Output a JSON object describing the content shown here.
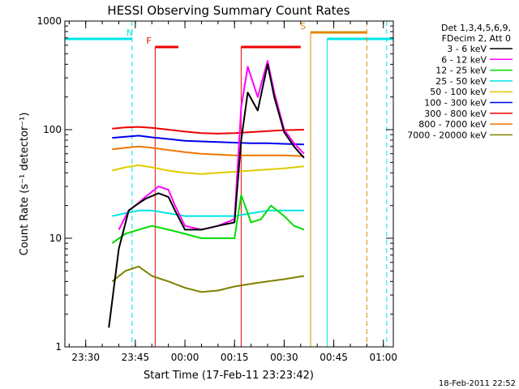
{
  "chart_data": {
    "type": "line",
    "title": "HESSI Observing Summary Count Rates",
    "xlabel": "Start Time (17-Feb-11 23:23:42)",
    "ylabel": "Count Rate (s⁻¹ detector⁻¹)",
    "y_scale": "log",
    "ylim": [
      1,
      1000
    ],
    "xlim": [
      "23:23:42",
      "01:03:00"
    ],
    "x_ticks": [
      "23:30",
      "23:45",
      "00:00",
      "00:15",
      "00:30",
      "00:45",
      "01:00"
    ],
    "y_ticks": [
      "1",
      "10",
      "100",
      "1000"
    ],
    "legend_header": [
      "Det 1,3,4,5,6,9,",
      "FDecim 2, Att 0"
    ],
    "timestamp": "18-Feb-2011 22:52",
    "flags": [
      {
        "label": "N",
        "color": "#00e5e5"
      },
      {
        "label": "F",
        "color": "#ee0000"
      },
      {
        "label": "S",
        "color": "#e08a00"
      }
    ],
    "flag_bars": [
      {
        "flag": "N",
        "segments": [
          [
            "23:23:42",
            "23:44:00"
          ],
          [
            "00:43:00",
            "01:03:00"
          ]
        ]
      },
      {
        "flag": "F",
        "segments": [
          [
            "23:51:00",
            "23:58:00"
          ],
          [
            "00:17:00",
            "00:35:00"
          ]
        ]
      },
      {
        "flag": "S",
        "segments": [
          [
            "00:38:00",
            "00:55:00"
          ]
        ]
      }
    ],
    "dashed_markers": [
      {
        "time": "23:44:00",
        "color": "#00e5e5"
      },
      {
        "time": "00:55:00",
        "color": "#e08a00"
      },
      {
        "time": "01:01:00",
        "color": "#00e5e5"
      }
    ],
    "series": [
      {
        "name": "3 - 6 keV",
        "color": "#000000",
        "x": [
          "23:37",
          "23:40",
          "23:43",
          "23:45",
          "23:48",
          "23:52",
          "23:55",
          "23:57",
          "00:00",
          "00:05",
          "00:10",
          "00:15",
          "00:17",
          "00:19",
          "00:22",
          "00:25",
          "00:27",
          "00:30",
          "00:33",
          "00:36"
        ],
        "y": [
          1.5,
          8,
          18,
          20,
          23,
          26,
          24,
          18,
          12,
          12,
          13,
          14,
          80,
          220,
          150,
          400,
          200,
          95,
          70,
          55
        ]
      },
      {
        "name": "6 - 12 keV",
        "color": "#ff00ff",
        "x": [
          "23:40",
          "23:43",
          "23:45",
          "23:48",
          "23:52",
          "23:55",
          "23:57",
          "00:00",
          "00:05",
          "00:10",
          "00:15",
          "00:17",
          "00:19",
          "00:22",
          "00:25",
          "00:27",
          "00:30",
          "00:33",
          "00:36"
        ],
        "y": [
          12,
          18,
          20,
          24,
          30,
          28,
          20,
          13,
          12,
          13,
          15,
          160,
          380,
          200,
          430,
          220,
          100,
          75,
          60
        ]
      },
      {
        "name": "12 - 25 keV",
        "color": "#00dd00",
        "x": [
          "23:38",
          "23:42",
          "23:46",
          "23:50",
          "23:55",
          "00:00",
          "00:05",
          "00:10",
          "00:15",
          "00:17",
          "00:20",
          "00:23",
          "00:26",
          "00:30",
          "00:33",
          "00:36"
        ],
        "y": [
          9,
          11,
          12,
          13,
          12,
          11,
          10,
          10,
          10,
          25,
          14,
          15,
          20,
          16,
          13,
          12
        ]
      },
      {
        "name": "25 - 50 keV",
        "color": "#00e5e5",
        "x": [
          "23:38",
          "23:42",
          "23:46",
          "23:50",
          "23:55",
          "00:00",
          "00:05",
          "00:10",
          "00:15",
          "00:20",
          "00:25",
          "00:30",
          "00:36"
        ],
        "y": [
          16,
          17,
          18,
          18,
          17,
          16,
          16,
          16,
          16,
          17,
          18,
          18,
          18
        ]
      },
      {
        "name": "50 - 100 keV",
        "color": "#ddcc00",
        "x": [
          "23:38",
          "23:42",
          "23:46",
          "23:50",
          "23:55",
          "00:00",
          "00:05",
          "00:10",
          "00:15",
          "00:20",
          "00:25",
          "00:30",
          "00:36"
        ],
        "y": [
          42,
          45,
          47,
          45,
          42,
          40,
          39,
          40,
          41,
          42,
          43,
          44,
          46
        ]
      },
      {
        "name": "100 - 300 keV",
        "color": "#0000ee",
        "x": [
          "23:38",
          "23:42",
          "23:46",
          "23:50",
          "23:55",
          "00:00",
          "00:05",
          "00:10",
          "00:15",
          "00:20",
          "00:25",
          "00:30",
          "00:36"
        ],
        "y": [
          84,
          86,
          88,
          85,
          82,
          79,
          78,
          77,
          76,
          75,
          75,
          74,
          73
        ]
      },
      {
        "name": "300 - 800 keV",
        "color": "#ee0000",
        "x": [
          "23:38",
          "23:42",
          "23:46",
          "23:50",
          "23:55",
          "00:00",
          "00:05",
          "00:10",
          "00:15",
          "00:20",
          "00:25",
          "00:30",
          "00:36"
        ],
        "y": [
          102,
          105,
          106,
          104,
          100,
          96,
          93,
          92,
          93,
          95,
          97,
          99,
          100
        ]
      },
      {
        "name": "800 - 7000 keV",
        "color": "#ee7700",
        "x": [
          "23:38",
          "23:42",
          "23:46",
          "23:50",
          "23:55",
          "00:00",
          "00:05",
          "00:10",
          "00:15",
          "00:20",
          "00:25",
          "00:30",
          "00:36"
        ],
        "y": [
          66,
          68,
          70,
          68,
          65,
          62,
          60,
          59,
          58,
          58,
          58,
          58,
          57
        ]
      },
      {
        "name": "7000 - 20000 keV",
        "color": "#808000",
        "x": [
          "23:38",
          "23:42",
          "23:46",
          "23:50",
          "23:55",
          "00:00",
          "00:05",
          "00:10",
          "00:15",
          "00:20",
          "00:25",
          "00:30",
          "00:36"
        ],
        "y": [
          4.0,
          5.0,
          5.5,
          4.5,
          4.0,
          3.5,
          3.2,
          3.3,
          3.6,
          3.8,
          4.0,
          4.2,
          4.5
        ]
      }
    ]
  }
}
